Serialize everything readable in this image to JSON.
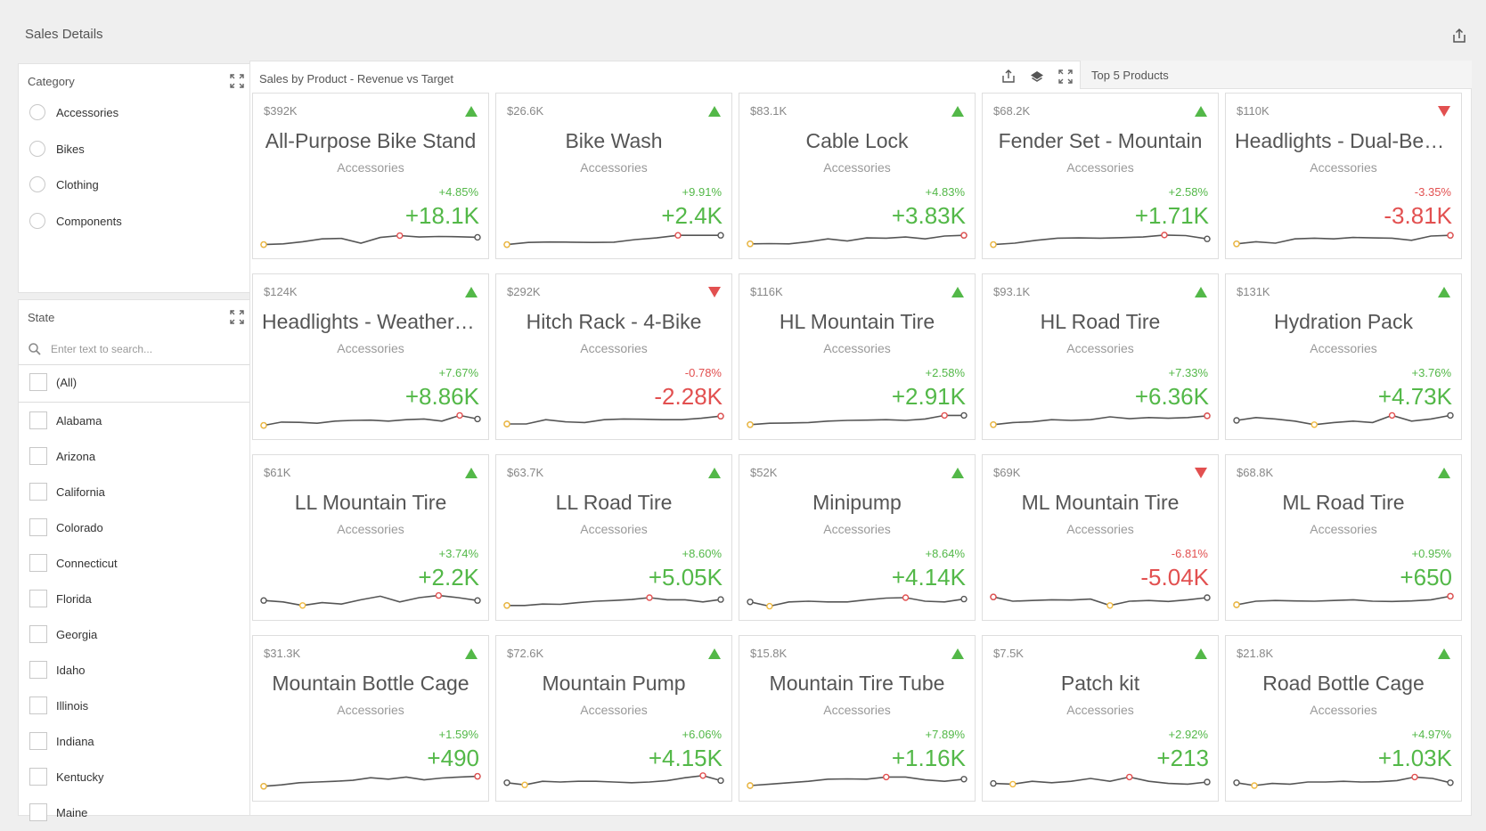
{
  "page": {
    "title": "Sales Details"
  },
  "category_panel": {
    "caption": "Category",
    "items": [
      "Accessories",
      "Bikes",
      "Clothing",
      "Components"
    ]
  },
  "state_panel": {
    "caption": "State",
    "search_placeholder": "Enter text to search...",
    "all_label": "(All)",
    "items": [
      "Alabama",
      "Arizona",
      "California",
      "Colorado",
      "Connecticut",
      "Florida",
      "Georgia",
      "Idaho",
      "Illinois",
      "Indiana",
      "Kentucky",
      "Maine"
    ]
  },
  "cards_panel": {
    "caption": "Sales by Product - Revenue vs Target",
    "tab_label": "Top 5 Products"
  },
  "colors": {
    "positive": "#53b848",
    "negative": "#e25050",
    "line": "#555555",
    "low_point": "#f0b93e",
    "high_point": "#e25050"
  },
  "cards": [
    {
      "target": "$392K",
      "name": "All-Purpose Bike Stand",
      "category": "Accessories",
      "pct": "+4.85%",
      "delta": "+18.1K",
      "trend": "up",
      "spark": [
        0.15,
        0.2,
        0.35,
        0.55,
        0.58,
        0.25,
        0.65,
        0.78,
        0.68,
        0.72,
        0.7,
        0.66
      ]
    },
    {
      "target": "$26.6K",
      "name": "Bike Wash",
      "category": "Accessories",
      "pct": "+9.91%",
      "delta": "+2.4K",
      "trend": "up",
      "spark": [
        0.15,
        0.3,
        0.33,
        0.32,
        0.3,
        0.32,
        0.5,
        0.62,
        0.8,
        0.8,
        0.8
      ]
    },
    {
      "target": "$83.1K",
      "name": "Cable Lock",
      "category": "Accessories",
      "pct": "+4.83%",
      "delta": "+3.83K",
      "trend": "up",
      "spark": [
        0.2,
        0.22,
        0.2,
        0.35,
        0.55,
        0.4,
        0.62,
        0.6,
        0.68,
        0.55,
        0.75,
        0.8
      ]
    },
    {
      "target": "$68.2K",
      "name": "Fender Set - Mountain",
      "category": "Accessories",
      "pct": "+2.58%",
      "delta": "+1.71K",
      "trend": "up",
      "spark": [
        0.15,
        0.25,
        0.45,
        0.6,
        0.62,
        0.6,
        0.64,
        0.68,
        0.82,
        0.78,
        0.55
      ]
    },
    {
      "target": "$110K",
      "name": "Headlights - Dual-Beam",
      "category": "Accessories",
      "pct": "-3.35%",
      "delta": "-3.81K",
      "trend": "down",
      "spark": [
        0.2,
        0.35,
        0.25,
        0.55,
        0.6,
        0.55,
        0.65,
        0.62,
        0.6,
        0.45,
        0.75,
        0.8
      ]
    },
    {
      "target": "$124K",
      "name": "Headlights - Weatherproof",
      "category": "Accessories",
      "pct": "+7.67%",
      "delta": "+8.86K",
      "trend": "up",
      "spark": [
        0.15,
        0.38,
        0.36,
        0.3,
        0.45,
        0.5,
        0.52,
        0.45,
        0.55,
        0.6,
        0.45,
        0.85,
        0.6
      ]
    },
    {
      "target": "$292K",
      "name": "Hitch Rack - 4-Bike",
      "category": "Accessories",
      "pct": "-0.78%",
      "delta": "-2.28K",
      "trend": "down",
      "spark": [
        0.25,
        0.25,
        0.55,
        0.4,
        0.35,
        0.55,
        0.6,
        0.58,
        0.55,
        0.55,
        0.65,
        0.8
      ]
    },
    {
      "target": "$116K",
      "name": "HL Mountain Tire",
      "category": "Accessories",
      "pct": "+2.58%",
      "delta": "+2.91K",
      "trend": "up",
      "spark": [
        0.2,
        0.3,
        0.32,
        0.35,
        0.45,
        0.5,
        0.52,
        0.55,
        0.5,
        0.6,
        0.85,
        0.85
      ]
    },
    {
      "target": "$93.1K",
      "name": "HL Road Tire",
      "category": "Accessories",
      "pct": "+7.33%",
      "delta": "+6.36K",
      "trend": "up",
      "spark": [
        0.2,
        0.35,
        0.4,
        0.55,
        0.5,
        0.55,
        0.75,
        0.62,
        0.7,
        0.65,
        0.7,
        0.82
      ]
    },
    {
      "target": "$131K",
      "name": "Hydration Pack",
      "category": "Accessories",
      "pct": "+3.76%",
      "delta": "+4.73K",
      "trend": "up",
      "spark": [
        0.5,
        0.7,
        0.6,
        0.45,
        0.2,
        0.35,
        0.45,
        0.35,
        0.85,
        0.45,
        0.6,
        0.85
      ]
    },
    {
      "target": "$61K",
      "name": "LL Mountain Tire",
      "category": "Accessories",
      "pct": "+3.74%",
      "delta": "+2.2K",
      "trend": "up",
      "spark": [
        0.55,
        0.45,
        0.2,
        0.4,
        0.3,
        0.6,
        0.85,
        0.45,
        0.75,
        0.9,
        0.75,
        0.55
      ]
    },
    {
      "target": "$63.7K",
      "name": "LL Road Tire",
      "category": "Accessories",
      "pct": "+8.60%",
      "delta": "+5.05K",
      "trend": "up",
      "spark": [
        0.2,
        0.2,
        0.3,
        0.28,
        0.4,
        0.5,
        0.55,
        0.62,
        0.75,
        0.6,
        0.6,
        0.45,
        0.62
      ]
    },
    {
      "target": "$52K",
      "name": "Minipump",
      "category": "Accessories",
      "pct": "+8.64%",
      "delta": "+4.14K",
      "trend": "up",
      "spark": [
        0.45,
        0.15,
        0.45,
        0.5,
        0.45,
        0.45,
        0.6,
        0.72,
        0.75,
        0.5,
        0.45,
        0.65
      ]
    },
    {
      "target": "$69K",
      "name": "ML Mountain Tire",
      "category": "Accessories",
      "pct": "-6.81%",
      "delta": "-5.04K",
      "trend": "down",
      "spark": [
        0.8,
        0.5,
        0.55,
        0.6,
        0.58,
        0.65,
        0.2,
        0.5,
        0.55,
        0.48,
        0.6,
        0.75
      ]
    },
    {
      "target": "$68.8K",
      "name": "ML Road Tire",
      "category": "Accessories",
      "pct": "+0.95%",
      "delta": "+650",
      "trend": "up",
      "spark": [
        0.25,
        0.5,
        0.55,
        0.52,
        0.5,
        0.55,
        0.6,
        0.5,
        0.48,
        0.52,
        0.6,
        0.85
      ]
    },
    {
      "target": "$31.3K",
      "name": "Mountain Bottle Cage",
      "category": "Accessories",
      "pct": "+1.59%",
      "delta": "+490",
      "trend": "up",
      "spark": [
        0.2,
        0.3,
        0.45,
        0.5,
        0.55,
        0.62,
        0.8,
        0.7,
        0.85,
        0.65,
        0.78,
        0.85,
        0.9
      ]
    },
    {
      "target": "$72.6K",
      "name": "Mountain Pump",
      "category": "Accessories",
      "pct": "+6.06%",
      "delta": "+4.15K",
      "trend": "up",
      "spark": [
        0.45,
        0.3,
        0.55,
        0.5,
        0.55,
        0.55,
        0.5,
        0.45,
        0.5,
        0.6,
        0.8,
        0.95,
        0.6
      ]
    },
    {
      "target": "$15.8K",
      "name": "Mountain Tire Tube",
      "category": "Accessories",
      "pct": "+7.89%",
      "delta": "+1.16K",
      "trend": "up",
      "spark": [
        0.25,
        0.35,
        0.45,
        0.55,
        0.7,
        0.72,
        0.7,
        0.85,
        0.85,
        0.65,
        0.55,
        0.7
      ]
    },
    {
      "target": "$7.5K",
      "name": "Patch kit",
      "category": "Accessories",
      "pct": "+2.92%",
      "delta": "+213",
      "trend": "up",
      "spark": [
        0.4,
        0.35,
        0.55,
        0.45,
        0.55,
        0.75,
        0.55,
        0.85,
        0.55,
        0.4,
        0.35,
        0.5
      ]
    },
    {
      "target": "$21.8K",
      "name": "Road Bottle Cage",
      "category": "Accessories",
      "pct": "+4.97%",
      "delta": "+1.03K",
      "trend": "up",
      "spark": [
        0.45,
        0.25,
        0.4,
        0.35,
        0.5,
        0.5,
        0.55,
        0.5,
        0.52,
        0.6,
        0.85,
        0.75,
        0.45
      ]
    }
  ]
}
